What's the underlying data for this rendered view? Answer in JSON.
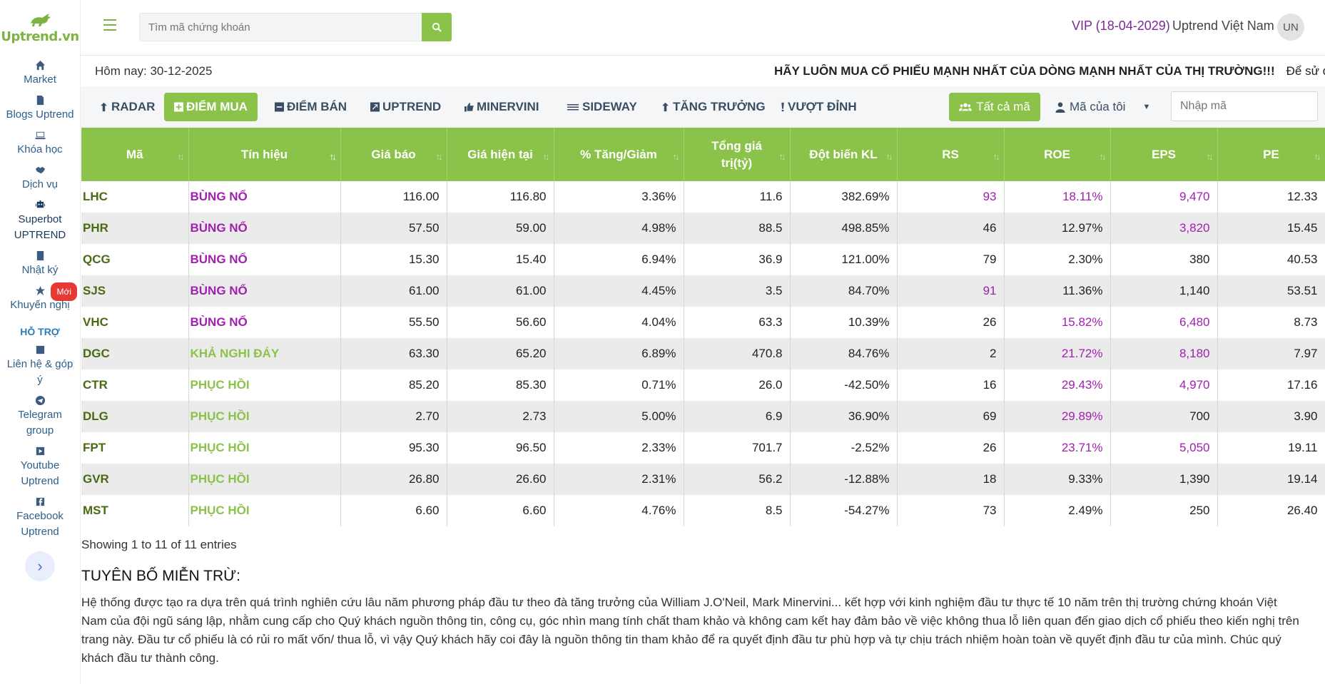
{
  "brand": {
    "name": "Uptrend.vn",
    "color": "#8bc34a"
  },
  "sidebar": {
    "items": [
      {
        "label": "Market",
        "icon": "home-icon"
      },
      {
        "label": "Blogs Uptrend",
        "icon": "document-icon"
      },
      {
        "label": "Khóa học",
        "icon": "laptop-icon"
      },
      {
        "label": "Dịch vụ",
        "icon": "handshake-icon"
      },
      {
        "label": "Superbot UPTREND",
        "icon": "robot-icon"
      },
      {
        "label": "Nhật ký",
        "icon": "book-icon"
      },
      {
        "label": "Khuyến nghị",
        "icon": "star-icon",
        "badge": "Mới"
      }
    ],
    "support_title": "HỖ TRỢ",
    "support_items": [
      {
        "label": "Liên hệ & góp ý",
        "icon": "contact-icon"
      },
      {
        "label": "Telegram group",
        "icon": "telegram-icon"
      },
      {
        "label": "Youtube Uptrend",
        "icon": "youtube-icon"
      },
      {
        "label": "Facebook Uptrend",
        "icon": "facebook-icon"
      }
    ],
    "collapse_glyph": "›"
  },
  "header": {
    "search_placeholder": "Tìm mã chứng khoán",
    "vip": "VIP (18-04-2029)",
    "username": "Uptrend Việt Nam",
    "avatar": "UN"
  },
  "infobar": {
    "today": "Hôm nay: 30-12-2025",
    "marquee": "HÃY LUÔN MUA CỔ PHIẾU MẠNH NHẤT CỦA DÒNG MẠNH NHẤT CỦA THỊ TRƯỜNG!!!",
    "marquee_extra": "Để sử d"
  },
  "filters": {
    "tabs": [
      {
        "label": "RADAR",
        "icon": "arrow-up-icon",
        "active": false
      },
      {
        "label": "ĐIỂM MUA",
        "icon": "plus-square-icon",
        "active": true
      },
      {
        "label": "ĐIỂM BÁN",
        "icon": "minus-square-icon",
        "active": false
      },
      {
        "label": "UPTREND",
        "icon": "trend-square-icon",
        "active": false
      },
      {
        "label": "MINERVINI",
        "icon": "thumbs-up-icon",
        "active": false
      },
      {
        "label": "SIDEWAY",
        "icon": "waves-icon",
        "active": false
      },
      {
        "label": "TĂNG TRƯỞNG",
        "icon": "arrow-up-icon",
        "active": false
      },
      {
        "label": "VƯỢT ĐỈNH",
        "icon": "exclamation-icon",
        "active": false
      }
    ],
    "all_codes": "Tất cả mã",
    "my_codes": "Mã của tôi",
    "code_input_placeholder": "Nhập mã"
  },
  "table": {
    "headers": [
      "Mã",
      "Tín hiệu",
      "Giá báo",
      "Giá hiện tại",
      "% Tăng/Giảm",
      "Tổng giá trị(tỷ)",
      "Đột biến KL",
      "RS",
      "ROE",
      "EPS",
      "PE"
    ],
    "sorted_column": 1,
    "rows": [
      {
        "code": "LHC",
        "signal": "BÙNG NỔ",
        "signal_color": "purple",
        "price_alert": "116.00",
        "price_now": "116.80",
        "change": "3.36%",
        "total": "11.6",
        "vol_spike": "382.69%",
        "rs": "93",
        "roe": "18.11%",
        "eps": "9,470",
        "pe": "12.33",
        "hl": {
          "rs": true,
          "roe": true,
          "eps": true
        }
      },
      {
        "code": "PHR",
        "signal": "BÙNG NỔ",
        "signal_color": "purple",
        "price_alert": "57.50",
        "price_now": "59.00",
        "change": "4.98%",
        "total": "88.5",
        "vol_spike": "498.85%",
        "rs": "46",
        "roe": "12.97%",
        "eps": "3,820",
        "pe": "15.45",
        "hl": {
          "rs": false,
          "roe": false,
          "eps": true
        }
      },
      {
        "code": "QCG",
        "signal": "BÙNG NỔ",
        "signal_color": "purple",
        "price_alert": "15.30",
        "price_now": "15.40",
        "change": "6.94%",
        "total": "36.9",
        "vol_spike": "121.00%",
        "rs": "79",
        "roe": "2.30%",
        "eps": "380",
        "pe": "40.53",
        "hl": {
          "rs": false,
          "roe": false,
          "eps": false
        }
      },
      {
        "code": "SJS",
        "signal": "BÙNG NỔ",
        "signal_color": "purple",
        "price_alert": "61.00",
        "price_now": "61.00",
        "change": "4.45%",
        "total": "3.5",
        "vol_spike": "84.70%",
        "rs": "91",
        "roe": "11.36%",
        "eps": "1,140",
        "pe": "53.51",
        "hl": {
          "rs": true,
          "roe": false,
          "eps": false
        }
      },
      {
        "code": "VHC",
        "signal": "BÙNG NỔ",
        "signal_color": "purple",
        "price_alert": "55.50",
        "price_now": "56.60",
        "change": "4.04%",
        "total": "63.3",
        "vol_spike": "10.39%",
        "rs": "26",
        "roe": "15.82%",
        "eps": "6,480",
        "pe": "8.73",
        "hl": {
          "rs": false,
          "roe": true,
          "eps": true
        }
      },
      {
        "code": "DGC",
        "signal": "KHẢ NGHI ĐÁY",
        "signal_color": "green",
        "price_alert": "63.30",
        "price_now": "65.20",
        "change": "6.89%",
        "total": "470.8",
        "vol_spike": "84.76%",
        "rs": "2",
        "roe": "21.72%",
        "eps": "8,180",
        "pe": "7.97",
        "hl": {
          "rs": false,
          "roe": true,
          "eps": true
        }
      },
      {
        "code": "CTR",
        "signal": "PHỤC HỒI",
        "signal_color": "green",
        "price_alert": "85.20",
        "price_now": "85.30",
        "change": "0.71%",
        "total": "26.0",
        "vol_spike": "-42.50%",
        "rs": "16",
        "roe": "29.43%",
        "eps": "4,970",
        "pe": "17.16",
        "hl": {
          "rs": false,
          "roe": true,
          "eps": true
        }
      },
      {
        "code": "DLG",
        "signal": "PHỤC HỒI",
        "signal_color": "green",
        "price_alert": "2.70",
        "price_now": "2.73",
        "change": "5.00%",
        "total": "6.9",
        "vol_spike": "36.90%",
        "rs": "69",
        "roe": "29.89%",
        "eps": "700",
        "pe": "3.90",
        "hl": {
          "rs": false,
          "roe": true,
          "eps": false
        }
      },
      {
        "code": "FPT",
        "signal": "PHỤC HỒI",
        "signal_color": "green",
        "price_alert": "95.30",
        "price_now": "96.50",
        "change": "2.33%",
        "total": "701.7",
        "vol_spike": "-2.52%",
        "rs": "26",
        "roe": "23.71%",
        "eps": "5,050",
        "pe": "19.11",
        "hl": {
          "rs": false,
          "roe": true,
          "eps": true
        }
      },
      {
        "code": "GVR",
        "signal": "PHỤC HỒI",
        "signal_color": "green",
        "price_alert": "26.80",
        "price_now": "26.60",
        "change": "2.31%",
        "total": "56.2",
        "vol_spike": "-12.88%",
        "rs": "18",
        "roe": "9.33%",
        "eps": "1,390",
        "pe": "19.14",
        "hl": {
          "rs": false,
          "roe": false,
          "eps": false
        }
      },
      {
        "code": "MST",
        "signal": "PHỤC HỒI",
        "signal_color": "green",
        "price_alert": "6.60",
        "price_now": "6.60",
        "change": "4.76%",
        "total": "8.5",
        "vol_spike": "-54.27%",
        "rs": "73",
        "roe": "2.49%",
        "eps": "250",
        "pe": "26.40",
        "hl": {
          "rs": false,
          "roe": false,
          "eps": false
        }
      }
    ],
    "showing": "Showing 1 to 11 of 11 entries"
  },
  "disclaimer": {
    "title": "TUYÊN BỐ MIỄN TRỪ:",
    "text": "Hệ thống được tạo ra dựa trên quá trình nghiên cứu lâu năm phương pháp đầu tư theo đà tăng trưởng của William J.O'Neil, Mark Minervini... kết hợp với kinh nghiệm đầu tư thực tế 10 năm trên thị trường chứng khoán Việt Nam của đội ngũ sáng lập, nhằm cung cấp cho Quý khách nguồn thông tin, công cụ, góc nhìn mang tính chất tham khảo và không cam kết hay đảm bảo về việc không thua lỗ liên quan đến giao dịch cổ phiếu theo kiến nghị trên trang này. Đầu tư cổ phiếu là có rủi ro mất vốn/ thua lỗ, vì vậy Quý khách hãy coi đây là nguồn thông tin tham khảo để ra quyết định đầu tư phù hợp và tự chịu trách nhiệm hoàn toàn về quyết định đầu tư của mình. Chúc quý khách đầu tư thành công."
  },
  "colors": {
    "accent_green": "#8bc34a",
    "highlight_purple": "#a020b0",
    "code_green": "#4b6b12"
  }
}
